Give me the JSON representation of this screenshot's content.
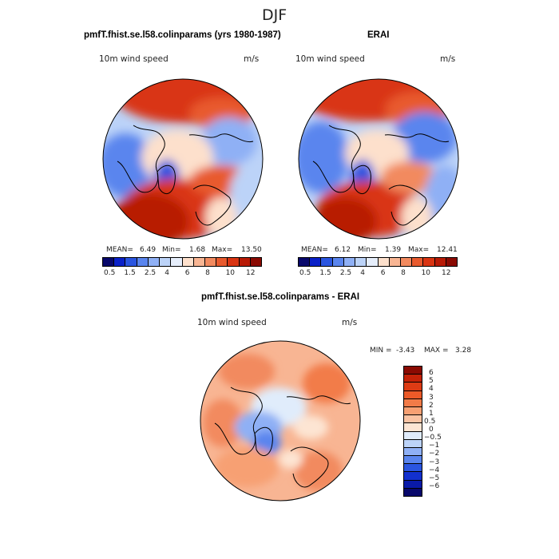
{
  "suptitle": "DJF",
  "panels": {
    "model": {
      "title": "pmfT.fhist.se.l58.colinparams (yrs 1980-1987)",
      "variable": "10m wind speed",
      "units": "m/s",
      "stats": {
        "mean_label": "MEAN=",
        "mean": "6.49",
        "min_label": "Min=",
        "min": "1.68",
        "max_label": "Max=",
        "max": "13.50"
      }
    },
    "obs": {
      "title": "ERAI",
      "variable": "10m wind speed",
      "units": "m/s",
      "stats": {
        "mean_label": "MEAN=",
        "mean": "6.12",
        "min_label": "Min=",
        "min": "1.39",
        "max_label": "Max=",
        "max": "12.41"
      }
    },
    "diff": {
      "title": "pmfT.fhist.se.l58.colinparams - ERAI",
      "variable": "10m wind speed",
      "units": "m/s",
      "stats": {
        "min_label": "MIN =",
        "min": "-3.43",
        "max_label": "MAX =",
        "max": "3.28"
      }
    }
  },
  "colorbar_main": {
    "tick_labels": [
      "0.5",
      "1.5",
      "2.5",
      "4",
      "6",
      "8",
      "10",
      "12"
    ],
    "colors": [
      "#08086b",
      "#0a21c8",
      "#2a55e0",
      "#5a85ee",
      "#8fb0f5",
      "#bcd3f8",
      "#e6eefb",
      "#fde0cc",
      "#f8b593",
      "#f28a5f",
      "#e85a2e",
      "#d93412",
      "#b81a06",
      "#8a0a02"
    ]
  },
  "colorbar_diff": {
    "tick_labels": [
      "6",
      "5",
      "4",
      "3",
      "2",
      "1",
      "0.5",
      "0",
      "−0.5",
      "−1",
      "−2",
      "−3",
      "−4",
      "−5",
      "−6"
    ],
    "colors": [
      "#8a0a02",
      "#c42208",
      "#dd3b14",
      "#ec5a28",
      "#f27b48",
      "#f7a073",
      "#fac3a3",
      "#fde5d3",
      "#e0ecfb",
      "#bcd3f8",
      "#8fb0f5",
      "#5a85ee",
      "#2a55e0",
      "#1230cf",
      "#0a1aa8",
      "#08086b"
    ]
  }
}
